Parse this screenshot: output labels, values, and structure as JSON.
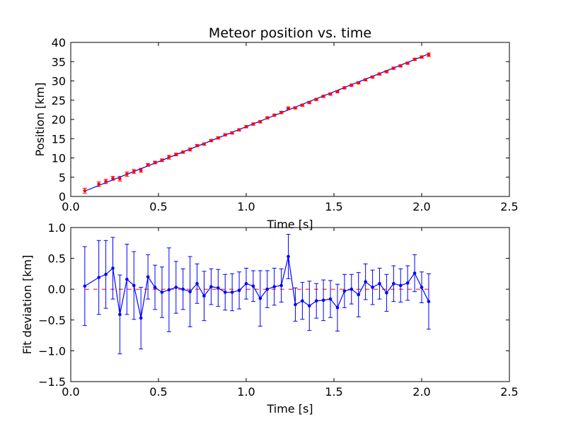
{
  "chart_data": [
    {
      "type": "scatter",
      "title": "Meteor position vs. time",
      "xlabel": "Time [s]",
      "ylabel": "Position [km]",
      "xlim": [
        0,
        2.5
      ],
      "ylim": [
        0,
        40
      ],
      "xticks": [
        "0.0",
        "0.5",
        "1.0",
        "1.5",
        "2.0",
        "2.5"
      ],
      "yticks": [
        "0",
        "5",
        "10",
        "15",
        "20",
        "25",
        "30",
        "35",
        "40"
      ],
      "grid": false,
      "colors": {
        "points": "#ff0000",
        "fit": "#0000ff"
      },
      "series": [
        {
          "style": "points-with-errorbars",
          "x": [
            0.08,
            0.16,
            0.2,
            0.24,
            0.28,
            0.32,
            0.36,
            0.4,
            0.44,
            0.48,
            0.52,
            0.56,
            0.6,
            0.64,
            0.68,
            0.72,
            0.76,
            0.8,
            0.84,
            0.88,
            0.92,
            0.96,
            1.0,
            1.04,
            1.08,
            1.12,
            1.16,
            1.2,
            1.24,
            1.28,
            1.32,
            1.36,
            1.4,
            1.44,
            1.48,
            1.52,
            1.56,
            1.6,
            1.64,
            1.68,
            1.72,
            1.76,
            1.8,
            1.84,
            1.88,
            1.92,
            1.96,
            2.0,
            2.04
          ],
          "y": [
            1.5,
            3.2,
            3.9,
            4.7,
            4.6,
            5.8,
            6.5,
            6.8,
            8.2,
            8.8,
            9.4,
            10.2,
            10.9,
            11.5,
            12.2,
            13.2,
            13.6,
            14.5,
            15.2,
            16.0,
            16.5,
            17.3,
            18.1,
            18.8,
            19.4,
            20.4,
            21.1,
            21.8,
            22.9,
            23.0,
            23.7,
            24.4,
            25.2,
            26.0,
            26.6,
            27.2,
            28.2,
            28.9,
            29.5,
            30.3,
            31.0,
            31.8,
            32.4,
            33.3,
            33.9,
            34.6,
            35.6,
            36.2,
            36.8
          ],
          "yerr": [
            0.64,
            0.6,
            0.55,
            0.5,
            0.6,
            0.55,
            0.5,
            0.5,
            0.35,
            0.35,
            0.35,
            0.5,
            0.35,
            0.3,
            0.4,
            0.3,
            0.3,
            0.3,
            0.3,
            0.3,
            0.3,
            0.3,
            0.3,
            0.3,
            0.3,
            0.3,
            0.3,
            0.3,
            0.35,
            0.3,
            0.3,
            0.3,
            0.3,
            0.3,
            0.3,
            0.3,
            0.3,
            0.3,
            0.3,
            0.3,
            0.3,
            0.3,
            0.3,
            0.3,
            0.3,
            0.3,
            0.3,
            0.3,
            0.45
          ]
        },
        {
          "style": "line",
          "x": [
            0.08,
            2.04
          ],
          "y": [
            1.4,
            37.0
          ]
        }
      ]
    },
    {
      "type": "line",
      "xlabel": "Time [s]",
      "ylabel": "Fit deviation [km]",
      "xlim": [
        0,
        2.5
      ],
      "ylim": [
        -1.5,
        1.0
      ],
      "xticks": [
        "0.0",
        "0.5",
        "1.0",
        "1.5",
        "2.0",
        "2.5"
      ],
      "yticks": [
        "−1.5",
        "−1.0",
        "−0.5",
        "0.0",
        "0.5",
        "1.0"
      ],
      "grid": false,
      "colors": {
        "line": "#0000ff",
        "zero": "#ff0000"
      },
      "series": [
        {
          "style": "line-with-errorbars",
          "x": [
            0.08,
            0.16,
            0.2,
            0.24,
            0.28,
            0.32,
            0.36,
            0.4,
            0.44,
            0.48,
            0.52,
            0.56,
            0.6,
            0.64,
            0.68,
            0.72,
            0.76,
            0.8,
            0.84,
            0.88,
            0.92,
            0.96,
            1.0,
            1.04,
            1.08,
            1.12,
            1.16,
            1.2,
            1.24,
            1.28,
            1.32,
            1.36,
            1.4,
            1.44,
            1.48,
            1.52,
            1.56,
            1.6,
            1.64,
            1.68,
            1.72,
            1.76,
            1.8,
            1.84,
            1.88,
            1.92,
            1.96,
            2.0,
            2.04
          ],
          "y": [
            0.05,
            0.19,
            0.24,
            0.34,
            -0.41,
            0.16,
            0.06,
            -0.47,
            0.2,
            0.03,
            -0.05,
            -0.01,
            0.03,
            0.0,
            -0.04,
            0.09,
            -0.11,
            0.04,
            0.02,
            -0.05,
            -0.05,
            -0.02,
            0.09,
            0.05,
            -0.15,
            0.0,
            0.04,
            0.06,
            0.53,
            -0.25,
            -0.19,
            -0.27,
            -0.19,
            -0.18,
            -0.16,
            -0.3,
            -0.03,
            0.0,
            -0.09,
            0.12,
            0.03,
            0.09,
            -0.06,
            0.09,
            0.06,
            0.1,
            0.26,
            0.03,
            -0.2
          ],
          "yerr": [
            0.64,
            0.6,
            0.55,
            0.5,
            0.64,
            0.57,
            0.55,
            0.5,
            0.36,
            0.36,
            0.41,
            0.68,
            0.42,
            0.33,
            0.57,
            0.32,
            0.4,
            0.29,
            0.3,
            0.29,
            0.3,
            0.3,
            0.25,
            0.25,
            0.45,
            0.3,
            0.3,
            0.27,
            0.36,
            0.27,
            0.3,
            0.4,
            0.28,
            0.33,
            0.3,
            0.38,
            0.27,
            0.24,
            0.36,
            0.29,
            0.28,
            0.25,
            0.3,
            0.29,
            0.27,
            0.28,
            0.3,
            0.25,
            0.45
          ]
        },
        {
          "style": "dashed-line",
          "x": [
            0.08,
            2.04
          ],
          "y": [
            0,
            0
          ]
        }
      ]
    }
  ]
}
